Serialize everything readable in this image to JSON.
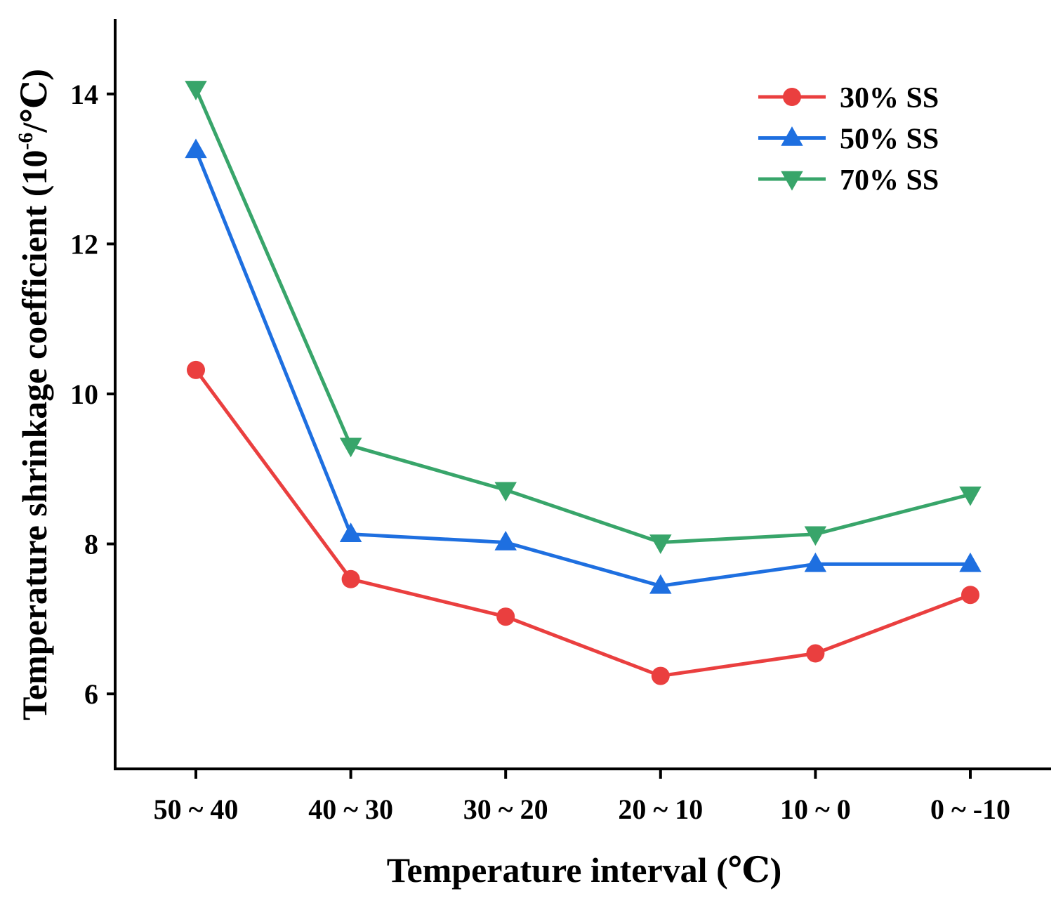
{
  "chart_data": {
    "type": "line",
    "title": "",
    "xlabel": "Temperature interval (℃)",
    "ylabel_main": "Temperature shrinkage coefficient (10",
    "ylabel_sup": "-6",
    "ylabel_end": "/℃)",
    "categories": [
      "50 ~ 40",
      "40 ~ 30",
      "30 ~ 20",
      "20 ~ 10",
      "10 ~ 0",
      "0 ~ -10"
    ],
    "ylim": [
      5,
      15
    ],
    "yticks": [
      6,
      8,
      10,
      12,
      14
    ],
    "grid": false,
    "legend_position": "top-right",
    "series": [
      {
        "name": "30% SS",
        "color": "#ea3f3f",
        "marker": "circle",
        "values": [
          10.32,
          7.53,
          7.03,
          6.24,
          6.54,
          7.32
        ]
      },
      {
        "name": "50% SS",
        "color": "#1e6fe0",
        "marker": "triangle-up",
        "values": [
          13.25,
          8.13,
          8.02,
          7.44,
          7.73,
          7.73
        ]
      },
      {
        "name": "70% SS",
        "color": "#38a56a",
        "marker": "triangle-down",
        "values": [
          14.07,
          9.31,
          8.72,
          8.02,
          8.13,
          8.66
        ]
      }
    ]
  }
}
